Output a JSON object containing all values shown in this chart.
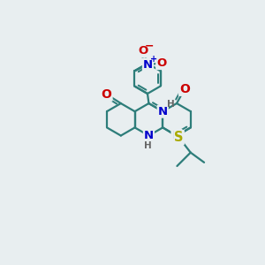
{
  "bg_color": "#e8eef0",
  "bond_color": "#2d7d7a",
  "bond_width": 1.6,
  "atom_colors": {
    "N": "#0000cc",
    "O": "#cc0000",
    "S": "#aaaa00",
    "H": "#666666"
  }
}
